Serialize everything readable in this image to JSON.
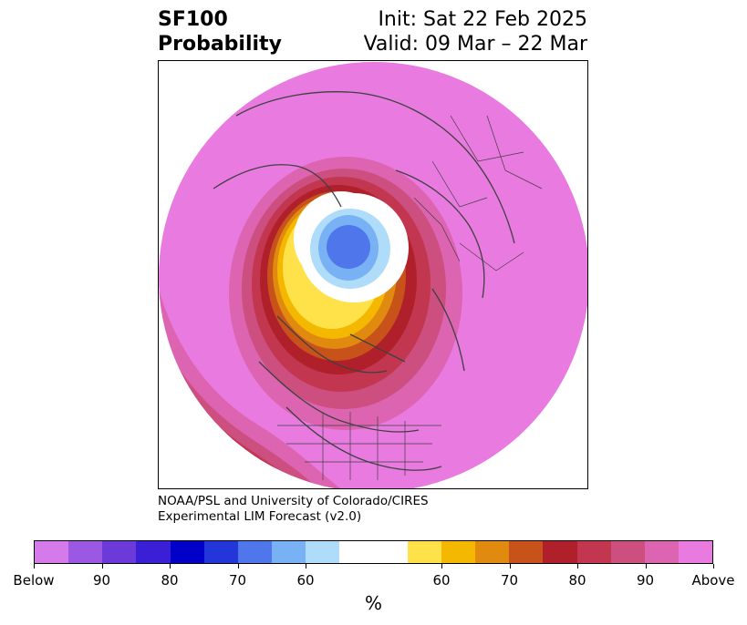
{
  "header": {
    "title_line1": "SF100",
    "title_line2": "Probability",
    "init": "Init: Sat 22 Feb 2025",
    "valid": "Valid: 09 Mar – 22 Mar"
  },
  "credits": {
    "line1": "NOAA/PSL and University of Colorado/CIRES",
    "line2": "Experimental LIM Forecast (v2.0)"
  },
  "colorbar": {
    "unit": "%",
    "colors": [
      "#d57aeb",
      "#9b59e3",
      "#6b3ad9",
      "#3a1fd6",
      "#0000c8",
      "#2336da",
      "#4f76ea",
      "#79b2f4",
      "#aedcf9",
      "#ffffff",
      "#ffffff",
      "#ffe14a",
      "#f5b800",
      "#e08a10",
      "#c8531a",
      "#b0202a",
      "#c2364f",
      "#cc4f80",
      "#dc64b0",
      "#e97ae0"
    ],
    "ticks": [
      "Below",
      "90",
      "80",
      "70",
      "60",
      "60",
      "70",
      "80",
      "90",
      "Above"
    ]
  },
  "map_colors": {
    "ocean_land_base": "#e87ae0",
    "outer_pink": "#dc64b0",
    "rose": "#cc4f80",
    "crimson": "#c2364f",
    "dark_red": "#b0202a",
    "orange_red": "#c8531a",
    "orange": "#e08a10",
    "gold": "#f5b800",
    "yellow": "#ffe14a",
    "neutral": "#ffffff",
    "light_blue": "#aedcf9",
    "sky_blue": "#79b2f4",
    "blue": "#4f76ea",
    "borders": "#404040"
  }
}
